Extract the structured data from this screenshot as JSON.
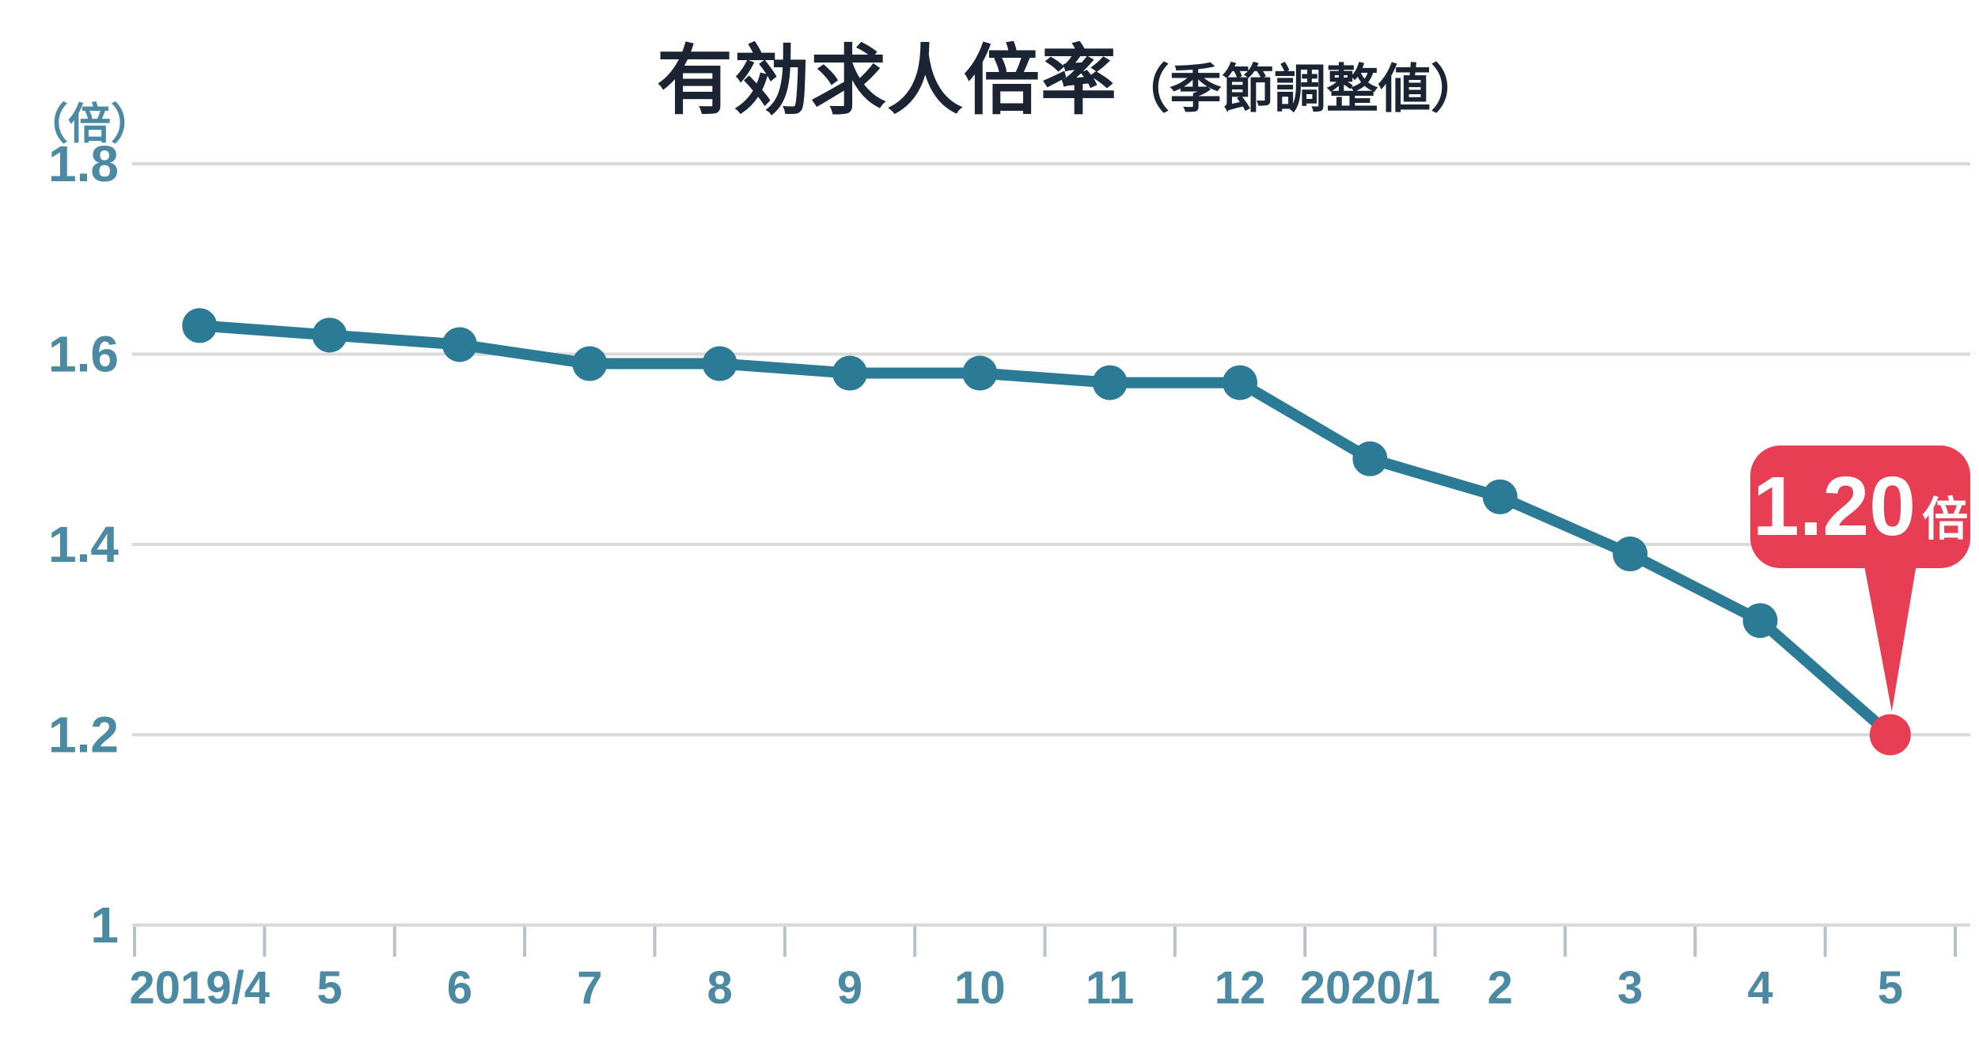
{
  "title": {
    "main": "有効求人倍率",
    "sub": "（季節調整値）"
  },
  "y_axis": {
    "unit_label": "（倍）",
    "tick_labels": [
      "1.8",
      "1.6",
      "1.4",
      "1.2",
      "1"
    ]
  },
  "callout": {
    "value": "1.20",
    "unit": "倍"
  },
  "colors": {
    "title": "#1b2433",
    "axis_label": "#4b8aa2",
    "line": "#2b7a96",
    "point": "#2b7a96",
    "highlight": "#e73e54",
    "gridline": "#d9d9d9",
    "tick": "#b7c1ca"
  },
  "chart_data": {
    "type": "line",
    "title": "有効求人倍率（季節調整値）",
    "categories": [
      "2019/4",
      "5",
      "6",
      "7",
      "8",
      "9",
      "10",
      "11",
      "12",
      "2020/1",
      "2",
      "3",
      "4",
      "5"
    ],
    "values": [
      1.63,
      1.62,
      1.61,
      1.59,
      1.59,
      1.58,
      1.58,
      1.57,
      1.57,
      1.49,
      1.45,
      1.39,
      1.32,
      1.2
    ],
    "series_name": "有効求人倍率（季節調整値）",
    "xlabel": "",
    "ylabel": "（倍）",
    "ylim": [
      1.0,
      1.8
    ],
    "y_ticks": [
      1.8,
      1.6,
      1.4,
      1.2,
      1.0
    ],
    "grid": true,
    "legend": false,
    "highlight_last_point": true,
    "last_point_label": "1.20倍"
  }
}
